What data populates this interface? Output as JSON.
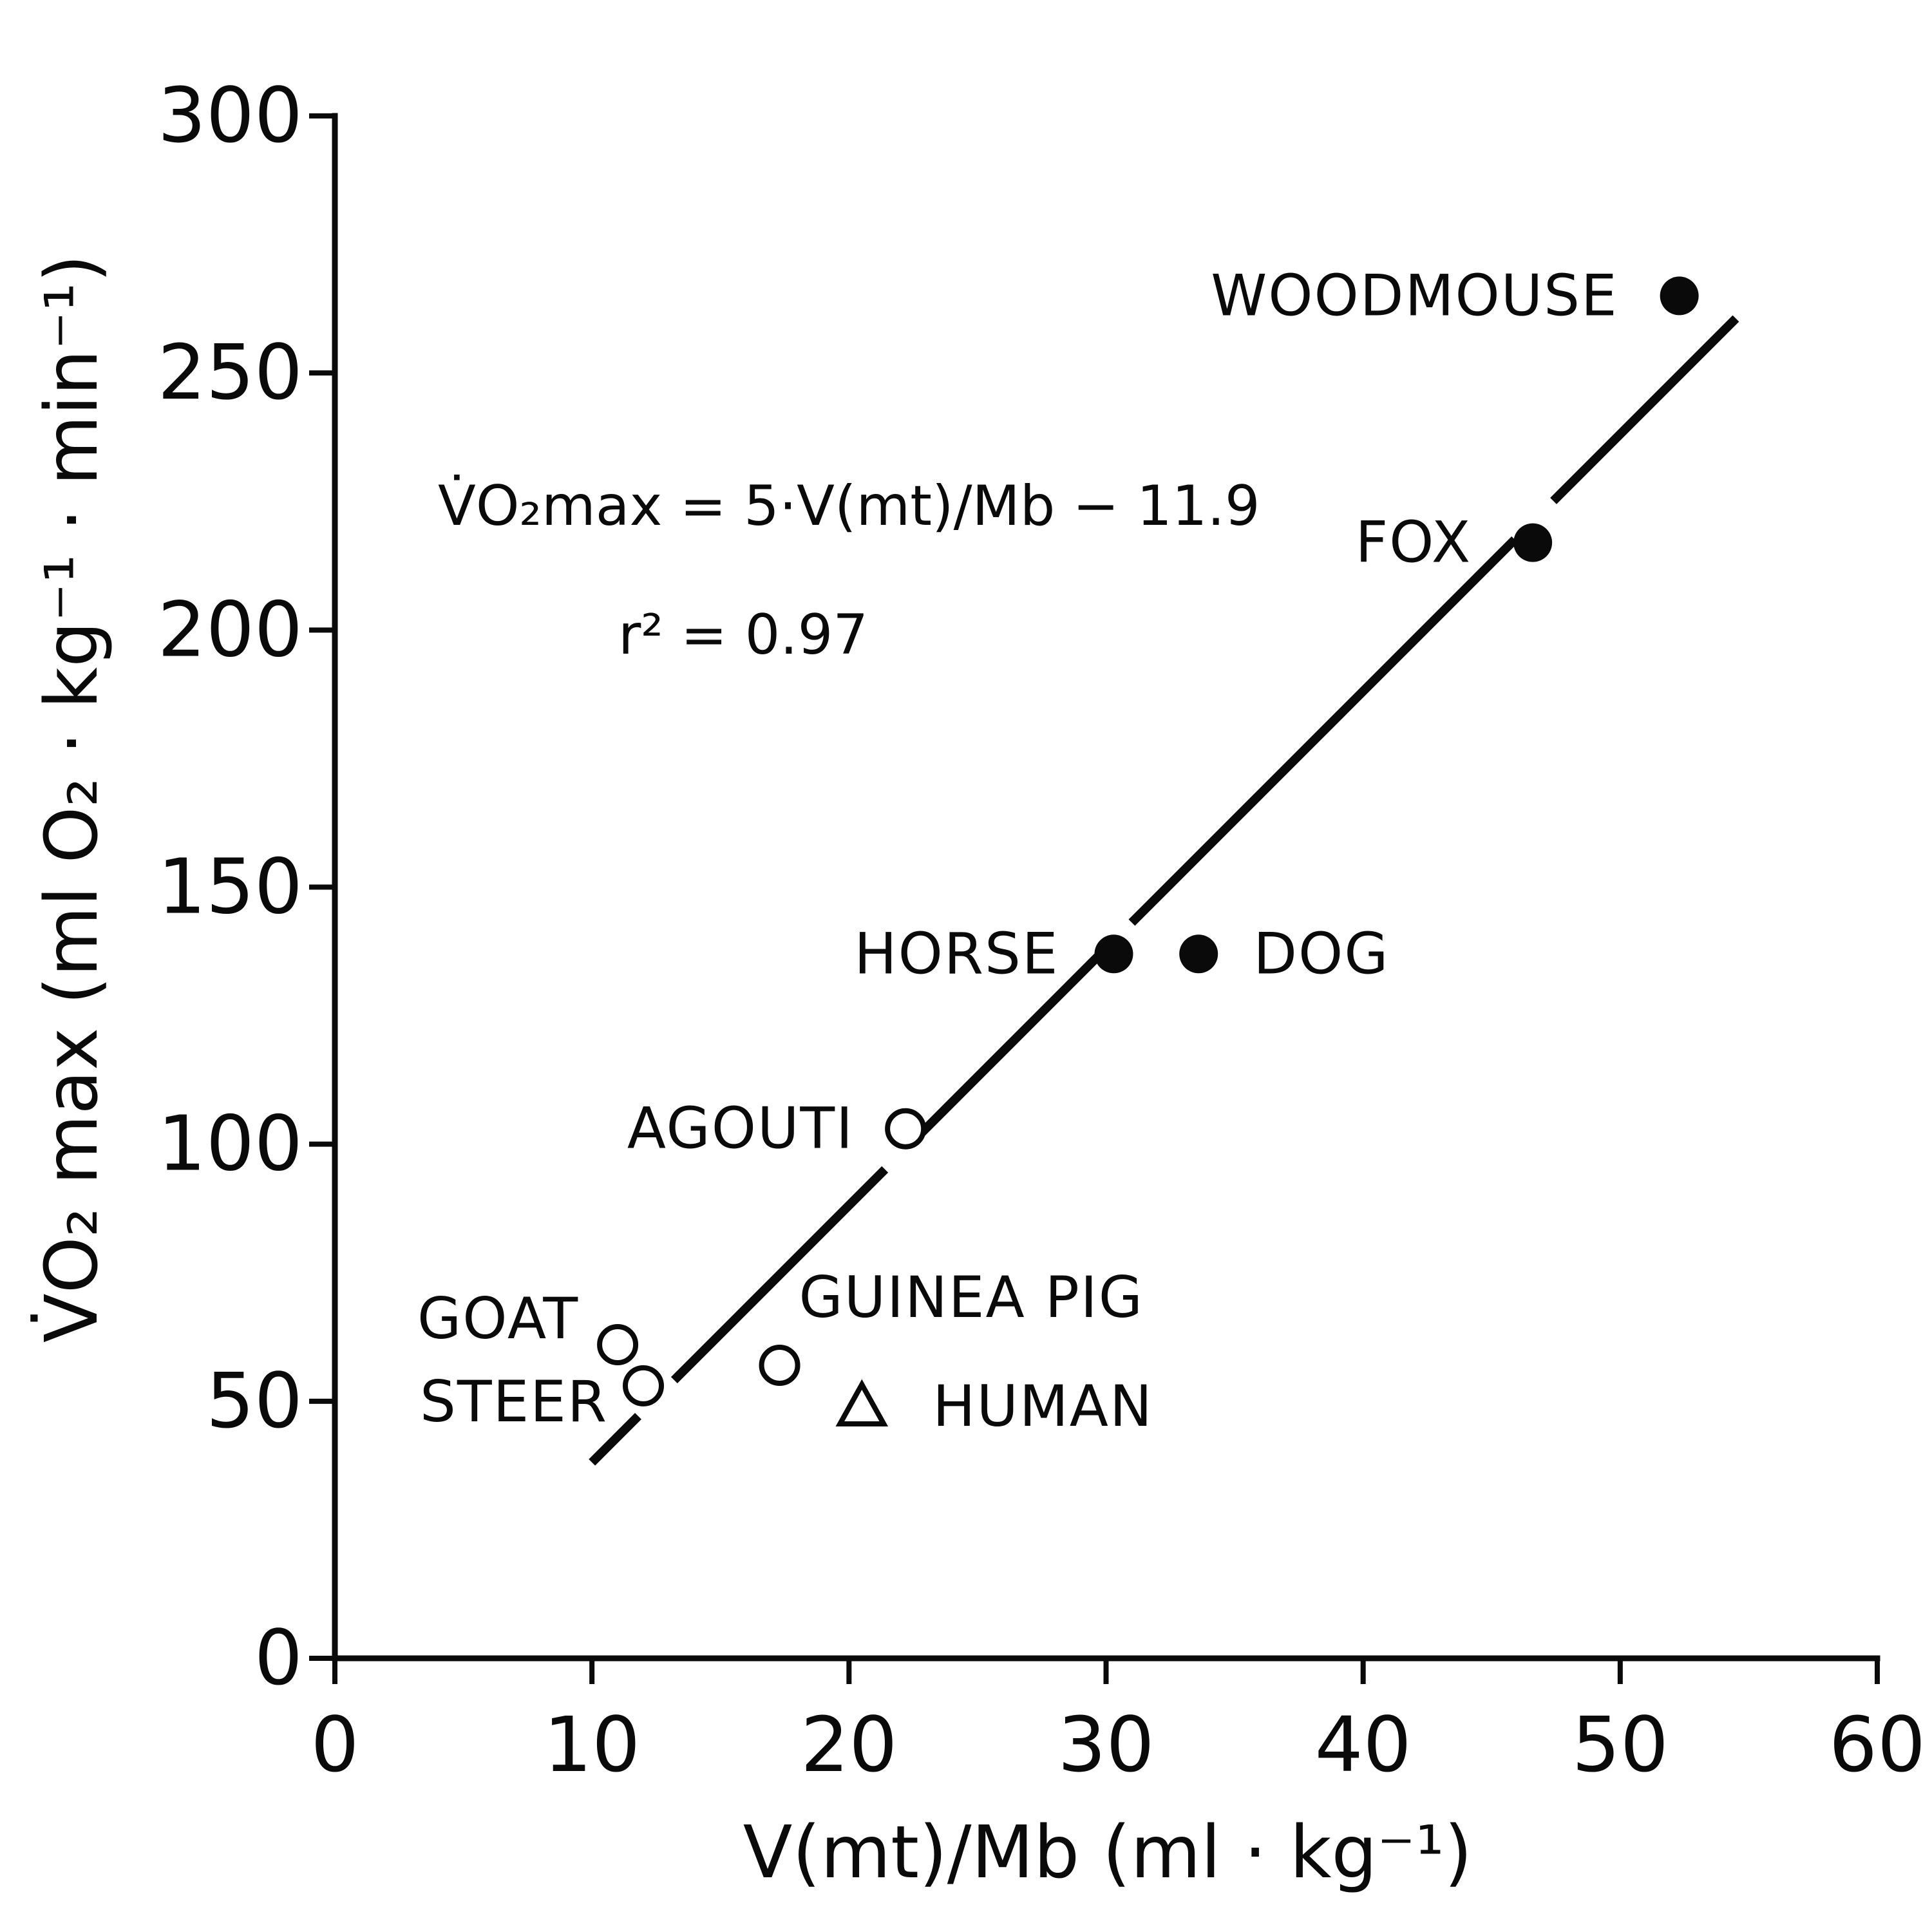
{
  "chart_data": {
    "type": "scatter",
    "xlabel": "V(mt)/Mb (ml · kg⁻¹)",
    "ylabel": "V̇O₂ max (ml O₂ · kg⁻¹ · min⁻¹)",
    "xlim": [
      0,
      60
    ],
    "ylim": [
      0,
      300
    ],
    "xticks": [
      0,
      10,
      20,
      30,
      40,
      50,
      60
    ],
    "yticks": [
      0,
      50,
      100,
      150,
      200,
      250,
      300
    ],
    "grid": false,
    "annotations": {
      "equation": "V̇O₂max = 5·V(mt)/Mb − 11.9",
      "r_squared": "r² = 0.97"
    },
    "regression": {
      "slope": 5,
      "intercept": -11.9,
      "x_range": [
        10,
        54.5
      ]
    },
    "points": [
      {
        "label": "WOODMOUSE",
        "x": 52.3,
        "y": 265,
        "marker": "filled-circle"
      },
      {
        "label": "FOX",
        "x": 46.6,
        "y": 217,
        "marker": "filled-circle"
      },
      {
        "label": "HORSE",
        "x": 30.3,
        "y": 137,
        "marker": "filled-circle"
      },
      {
        "label": "DOG",
        "x": 33.6,
        "y": 137,
        "marker": "filled-circle"
      },
      {
        "label": "AGOUTI",
        "x": 22.2,
        "y": 103,
        "marker": "open-circle"
      },
      {
        "label": "GOAT",
        "x": 11.0,
        "y": 61,
        "marker": "open-circle"
      },
      {
        "label": "STEER",
        "x": 12.0,
        "y": 53,
        "marker": "open-circle"
      },
      {
        "label": "GUINEA PIG",
        "x": 17.3,
        "y": 57,
        "marker": "open-circle"
      },
      {
        "label": "HUMAN",
        "x": 20.5,
        "y": 49,
        "marker": "open-triangle"
      }
    ]
  }
}
